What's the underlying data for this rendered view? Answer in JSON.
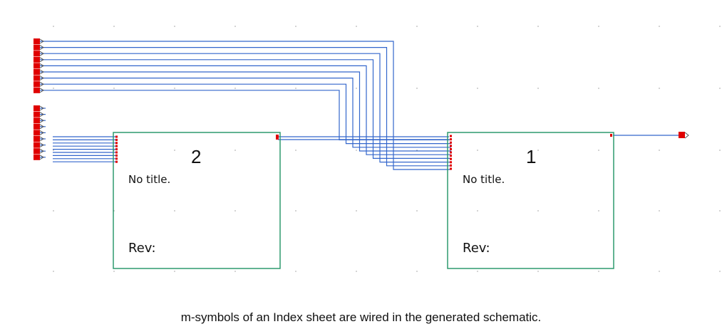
{
  "colors": {
    "wire": "#3366cc",
    "symbol_border": "#2e9a6e",
    "pin": "#e00000",
    "grid_dot": "#555555",
    "background": "#ffffff"
  },
  "symbols": [
    {
      "number": "2",
      "title": "No title.",
      "rev": "Rev:"
    },
    {
      "number": "1",
      "title": "No title.",
      "rev": "Rev:"
    }
  ],
  "caption": "m-symbols of an Index sheet are wired in the generated schematic."
}
